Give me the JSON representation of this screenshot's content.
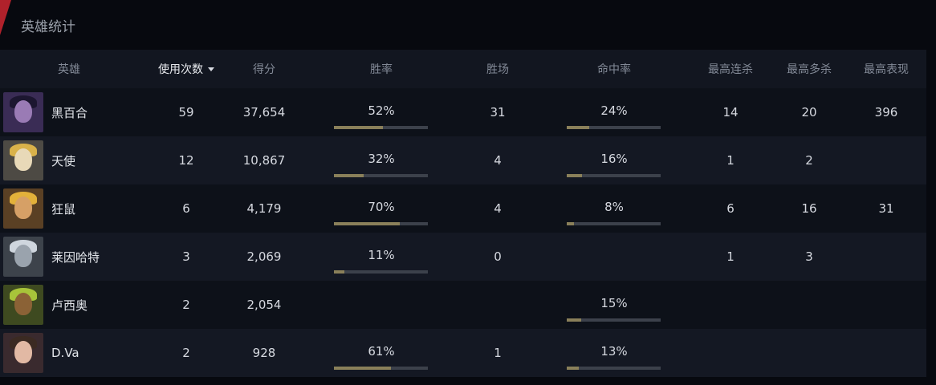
{
  "title": "英雄统计",
  "columns": {
    "hero": "英雄",
    "uses": "使用次数",
    "score": "得分",
    "win_rate": "胜率",
    "wins": "胜场",
    "accuracy": "命中率",
    "best_streak": "最高连杀",
    "best_multikill": "最高多杀",
    "best_performance": "最高表现"
  },
  "colors": {
    "accent": "#b0212b",
    "bar_fill": "#8a805a",
    "bar_track": "#3c414b"
  },
  "rows": [
    {
      "hero": "黑百合",
      "icon": "widowmaker-portrait",
      "uses": "59",
      "score": "37,654",
      "win_rate": "52%",
      "win_rate_value": 0.52,
      "wins": "31",
      "accuracy": "24%",
      "accuracy_value": 0.24,
      "best_streak": "14",
      "best_multikill": "20",
      "best_performance": "396"
    },
    {
      "hero": "天使",
      "icon": "mercy-portrait",
      "uses": "12",
      "score": "10,867",
      "win_rate": "32%",
      "win_rate_value": 0.32,
      "wins": "4",
      "accuracy": "16%",
      "accuracy_value": 0.16,
      "best_streak": "1",
      "best_multikill": "2",
      "best_performance": ""
    },
    {
      "hero": "狂鼠",
      "icon": "junkrat-portrait",
      "uses": "6",
      "score": "4,179",
      "win_rate": "70%",
      "win_rate_value": 0.7,
      "wins": "4",
      "accuracy": "8%",
      "accuracy_value": 0.08,
      "best_streak": "6",
      "best_multikill": "16",
      "best_performance": "31"
    },
    {
      "hero": "莱因哈特",
      "icon": "reinhardt-portrait",
      "uses": "3",
      "score": "2,069",
      "win_rate": "11%",
      "win_rate_value": 0.11,
      "wins": "0",
      "accuracy": "",
      "accuracy_value": null,
      "best_streak": "1",
      "best_multikill": "3",
      "best_performance": ""
    },
    {
      "hero": "卢西奥",
      "icon": "lucio-portrait",
      "uses": "2",
      "score": "2,054",
      "win_rate": "",
      "win_rate_value": null,
      "wins": "",
      "accuracy": "15%",
      "accuracy_value": 0.15,
      "best_streak": "",
      "best_multikill": "",
      "best_performance": ""
    },
    {
      "hero": "D.Va",
      "icon": "dva-portrait",
      "uses": "2",
      "score": "928",
      "win_rate": "61%",
      "win_rate_value": 0.61,
      "wins": "1",
      "accuracy": "13%",
      "accuracy_value": 0.13,
      "best_streak": "",
      "best_multikill": "",
      "best_performance": ""
    }
  ]
}
